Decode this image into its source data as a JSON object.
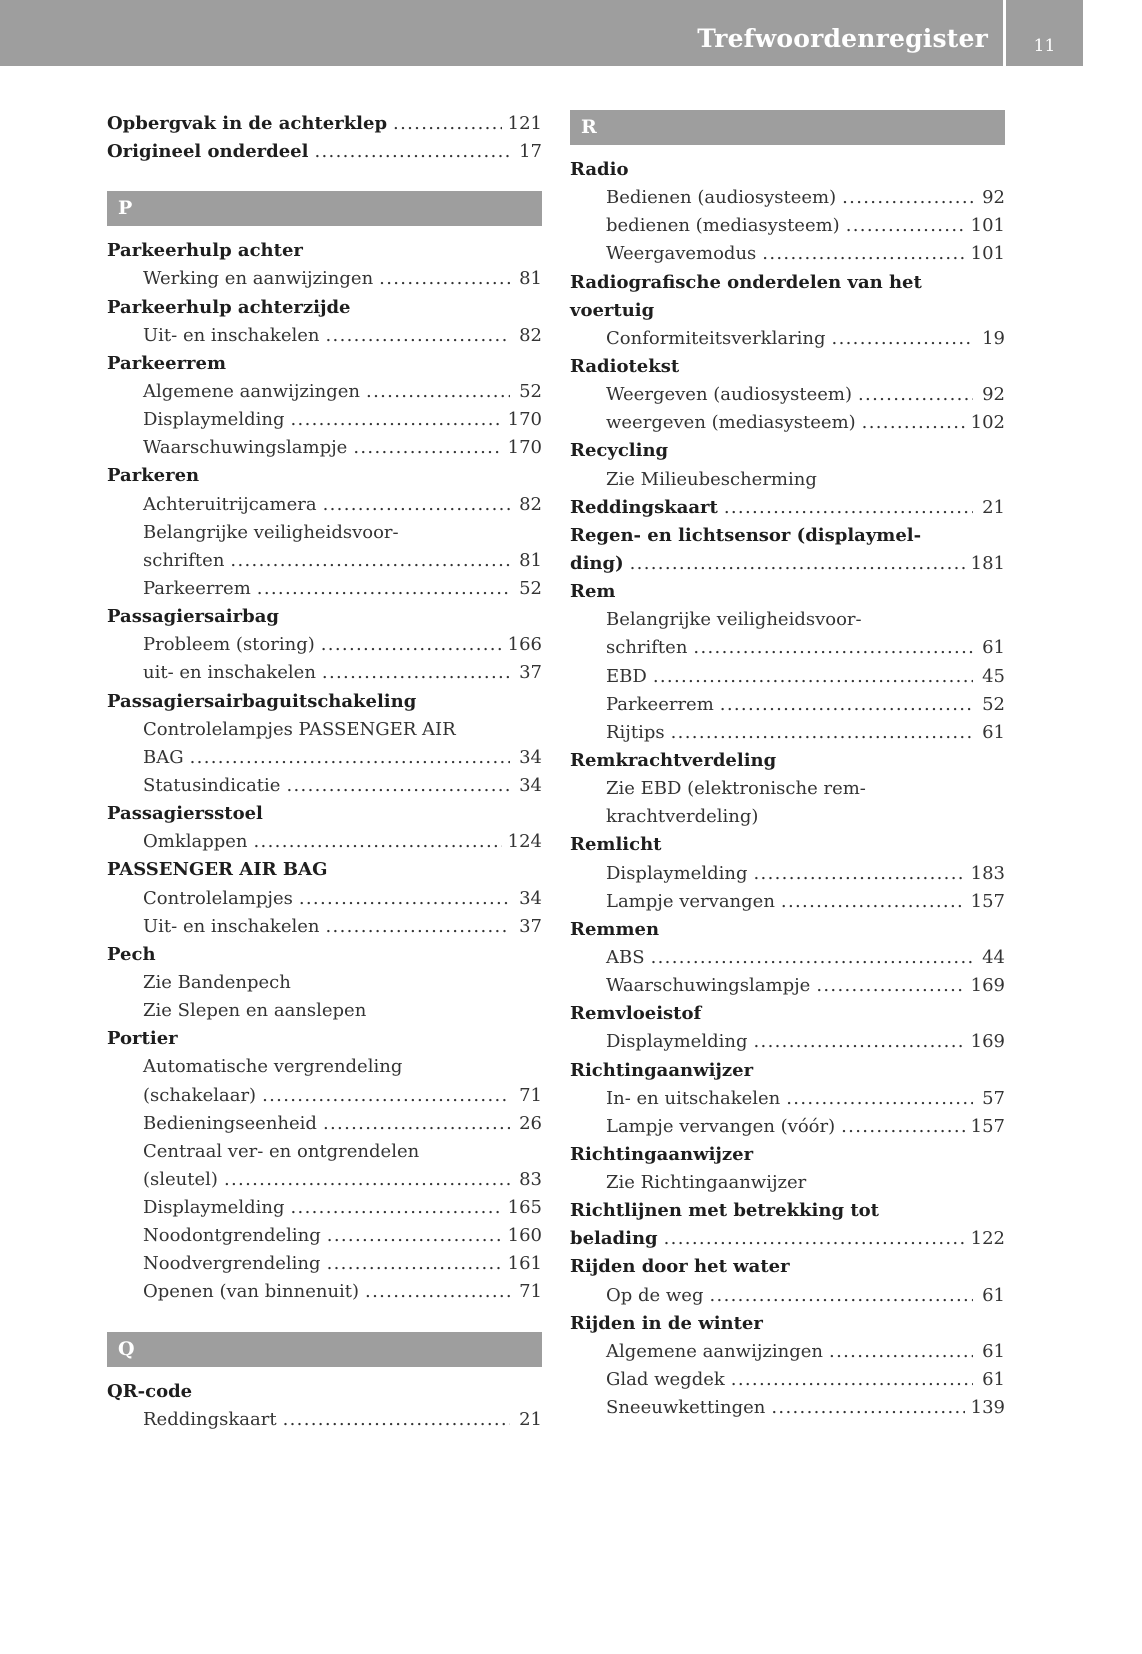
{
  "header": {
    "title": "Trefwoordenregister",
    "page_number": "11",
    "bar_color": "#9e9e9e"
  },
  "columns": {
    "left": [
      {
        "kind": "head",
        "text": "Opbergvak in de achterklep",
        "page": "121"
      },
      {
        "kind": "head",
        "text": "Origineel onderdeel",
        "page": "17"
      },
      {
        "kind": "bar",
        "text": "P"
      },
      {
        "kind": "head",
        "text": "Parkeerhulp achter"
      },
      {
        "kind": "sub",
        "text": "Werking en aanwijzingen",
        "page": "81"
      },
      {
        "kind": "head",
        "text": "Parkeerhulp achterzijde"
      },
      {
        "kind": "sub",
        "text": "Uit- en inschakelen",
        "page": "82"
      },
      {
        "kind": "head",
        "text": "Parkeerrem"
      },
      {
        "kind": "sub",
        "text": "Algemene aanwijzingen",
        "page": "52"
      },
      {
        "kind": "sub",
        "text": "Displaymelding",
        "page": "170"
      },
      {
        "kind": "sub",
        "text": "Waarschuwingslampje",
        "page": "170"
      },
      {
        "kind": "head",
        "text": "Parkeren"
      },
      {
        "kind": "sub",
        "text": "Achteruitrijcamera",
        "page": "82"
      },
      {
        "kind": "sub",
        "text": "Belangrijke veiligheidsvoor-"
      },
      {
        "kind": "sub",
        "text": "schriften",
        "page": "81"
      },
      {
        "kind": "sub",
        "text": "Parkeerrem",
        "page": "52"
      },
      {
        "kind": "head",
        "text": "Passagiersairbag"
      },
      {
        "kind": "sub",
        "text": "Probleem (storing)",
        "page": "166"
      },
      {
        "kind": "sub",
        "text": "uit- en inschakelen",
        "page": "37"
      },
      {
        "kind": "head",
        "text": "Passagiersairbaguitschakeling"
      },
      {
        "kind": "sub",
        "text": "Controlelampjes PASSENGER AIR"
      },
      {
        "kind": "sub",
        "text": "BAG",
        "page": "34"
      },
      {
        "kind": "sub",
        "text": "Statusindicatie",
        "page": "34"
      },
      {
        "kind": "head",
        "text": "Passagiersstoel"
      },
      {
        "kind": "sub",
        "text": "Omklappen",
        "page": "124"
      },
      {
        "kind": "head",
        "text": "PASSENGER AIR BAG"
      },
      {
        "kind": "sub",
        "text": "Controlelampjes",
        "page": "34"
      },
      {
        "kind": "sub",
        "text": "Uit- en inschakelen",
        "page": "37"
      },
      {
        "kind": "head",
        "text": "Pech"
      },
      {
        "kind": "sub",
        "text": "Zie Bandenpech"
      },
      {
        "kind": "sub",
        "text": "Zie Slepen en aanslepen"
      },
      {
        "kind": "head",
        "text": "Portier"
      },
      {
        "kind": "sub",
        "text": "Automatische vergrendeling"
      },
      {
        "kind": "sub",
        "text": "(schakelaar)",
        "page": "71"
      },
      {
        "kind": "sub",
        "text": "Bedieningseenheid",
        "page": "26"
      },
      {
        "kind": "sub",
        "text": "Centraal ver- en ontgrendelen"
      },
      {
        "kind": "sub",
        "text": "(sleutel)",
        "page": "83"
      },
      {
        "kind": "sub",
        "text": "Displaymelding",
        "page": "165"
      },
      {
        "kind": "sub",
        "text": "Noodontgrendeling",
        "page": "160"
      },
      {
        "kind": "sub",
        "text": "Noodvergrendeling",
        "page": "161"
      },
      {
        "kind": "sub",
        "text": "Openen (van binnenuit)",
        "page": "71"
      },
      {
        "kind": "bar",
        "text": "Q"
      },
      {
        "kind": "head",
        "text": "QR-code"
      },
      {
        "kind": "sub",
        "text": "Reddingskaart",
        "page": "21"
      }
    ],
    "right": [
      {
        "kind": "bar",
        "text": "R"
      },
      {
        "kind": "head",
        "text": "Radio"
      },
      {
        "kind": "sub",
        "text": "Bedienen (audiosysteem)",
        "page": "92"
      },
      {
        "kind": "sub",
        "text": "bedienen (mediasysteem)",
        "page": "101"
      },
      {
        "kind": "sub",
        "text": "Weergavemodus",
        "page": "101"
      },
      {
        "kind": "head",
        "text": "Radiografische onderdelen van het"
      },
      {
        "kind": "head",
        "text": "voertuig"
      },
      {
        "kind": "sub",
        "text": "Conformiteitsverklaring",
        "page": "19"
      },
      {
        "kind": "head",
        "text": "Radiotekst"
      },
      {
        "kind": "sub",
        "text": "Weergeven (audiosysteem)",
        "page": "92"
      },
      {
        "kind": "sub",
        "text": "weergeven (mediasysteem)",
        "page": "102"
      },
      {
        "kind": "head",
        "text": "Recycling"
      },
      {
        "kind": "sub",
        "text": "Zie Milieubescherming"
      },
      {
        "kind": "head",
        "text": "Reddingskaart",
        "page": "21"
      },
      {
        "kind": "head",
        "text": "Regen- en lichtsensor (displaymel-"
      },
      {
        "kind": "head",
        "text": "ding)",
        "page": "181"
      },
      {
        "kind": "head",
        "text": "Rem"
      },
      {
        "kind": "sub",
        "text": "Belangrijke veiligheidsvoor-"
      },
      {
        "kind": "sub",
        "text": "schriften",
        "page": "61"
      },
      {
        "kind": "sub",
        "text": "EBD",
        "page": "45"
      },
      {
        "kind": "sub",
        "text": "Parkeerrem",
        "page": "52"
      },
      {
        "kind": "sub",
        "text": "Rijtips",
        "page": "61"
      },
      {
        "kind": "head",
        "text": "Remkrachtverdeling"
      },
      {
        "kind": "sub",
        "text": "Zie EBD (elektronische rem-"
      },
      {
        "kind": "sub",
        "text": "krachtverdeling)"
      },
      {
        "kind": "head",
        "text": "Remlicht"
      },
      {
        "kind": "sub",
        "text": "Displaymelding",
        "page": "183"
      },
      {
        "kind": "sub",
        "text": "Lampje vervangen",
        "page": "157"
      },
      {
        "kind": "head",
        "text": "Remmen"
      },
      {
        "kind": "sub",
        "text": "ABS",
        "page": "44"
      },
      {
        "kind": "sub",
        "text": "Waarschuwingslampje",
        "page": "169"
      },
      {
        "kind": "head",
        "text": "Remvloeistof"
      },
      {
        "kind": "sub",
        "text": "Displaymelding",
        "page": "169"
      },
      {
        "kind": "head",
        "text": "Richtingaanwijzer"
      },
      {
        "kind": "sub",
        "text": "In- en uitschakelen",
        "page": "57"
      },
      {
        "kind": "sub",
        "text": "Lampje vervangen (vóór)",
        "page": "157"
      },
      {
        "kind": "head",
        "text": "Richtingaanwijzer"
      },
      {
        "kind": "sub",
        "text": "Zie Richtingaanwijzer"
      },
      {
        "kind": "head",
        "text": "Richtlijnen met betrekking tot"
      },
      {
        "kind": "head",
        "text": "belading",
        "page": "122"
      },
      {
        "kind": "head",
        "text": "Rijden door het water"
      },
      {
        "kind": "sub",
        "text": "Op de weg",
        "page": "61"
      },
      {
        "kind": "head",
        "text": "Rijden in de winter"
      },
      {
        "kind": "sub",
        "text": "Algemene aanwijzingen",
        "page": "61"
      },
      {
        "kind": "sub",
        "text": "Glad wegdek",
        "page": "61"
      },
      {
        "kind": "sub",
        "text": "Sneeuwkettingen",
        "page": "139"
      }
    ]
  }
}
